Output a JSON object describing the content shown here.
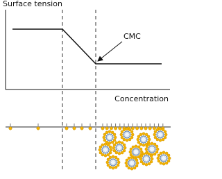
{
  "axes": {
    "y_label": "Surface tension",
    "x_label": "Concentration"
  },
  "annotation": "CMC"
}
